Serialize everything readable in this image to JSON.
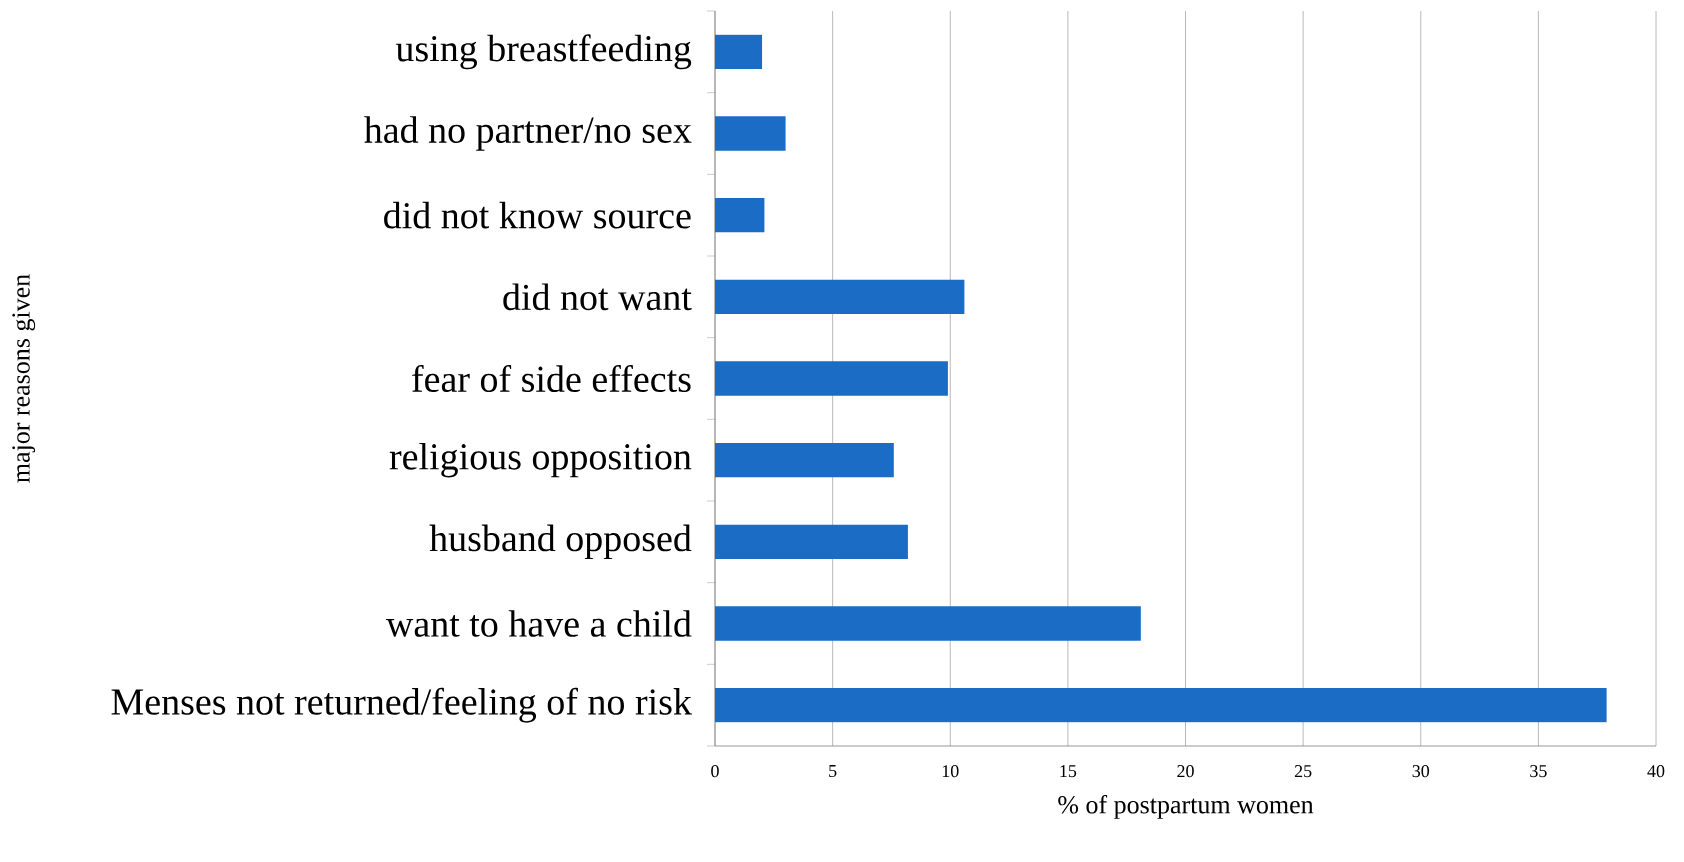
{
  "chart_data": {
    "type": "bar",
    "orientation": "horizontal",
    "xlabel": "% of postpartum women",
    "ylabel": "major reasons given",
    "categories": [
      "using breastfeeding",
      "had no partner/no sex",
      "did not know source",
      "did not want",
      "fear of side effects",
      "religious opposition",
      "husband opposed",
      "want to have a child",
      "Menses not returned/feeling of no risk"
    ],
    "values": [
      2.0,
      3.0,
      2.1,
      10.6,
      9.9,
      7.6,
      8.2,
      18.1,
      37.9
    ],
    "color": "#1b6cc4",
    "xlim": [
      0,
      40
    ],
    "xticks": [
      0,
      5,
      10,
      15,
      20,
      25,
      30,
      35,
      40
    ],
    "grid": "x"
  }
}
